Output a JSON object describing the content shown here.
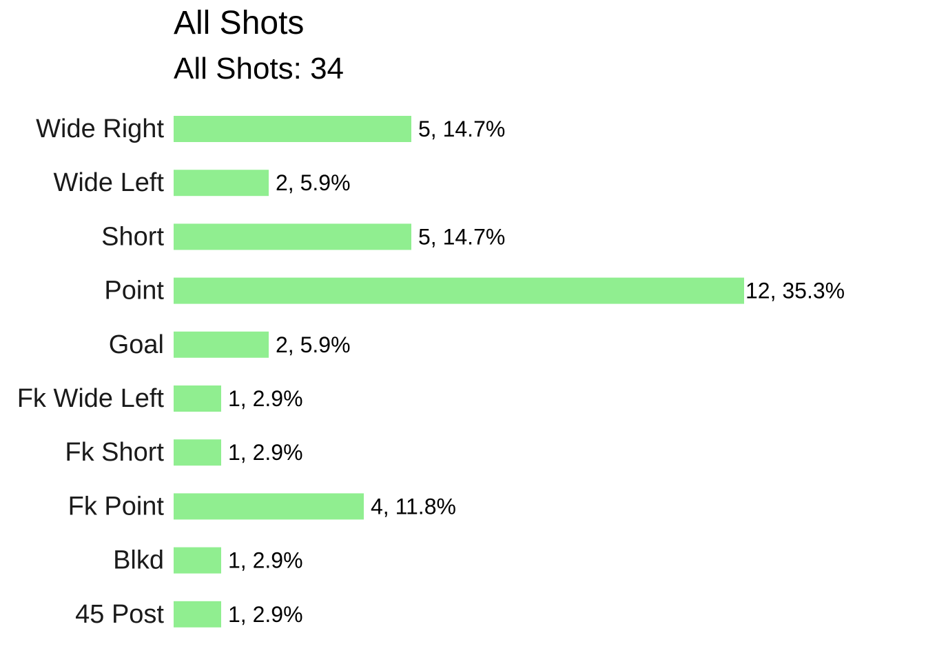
{
  "chart_data": {
    "type": "bar",
    "orientation": "horizontal",
    "title": "All Shots",
    "subtitle": "All Shots: 34",
    "categories": [
      "Wide Right",
      "Wide Left",
      "Short",
      "Point",
      "Goal",
      "Fk Wide Left",
      "Fk Short",
      "Fk Point",
      "Blkd",
      "45 Post"
    ],
    "values": [
      5,
      2,
      5,
      12,
      2,
      1,
      1,
      4,
      1,
      1
    ],
    "labels": [
      "5, 14.7%",
      "2, 5.9%",
      "5, 14.7%",
      "12, 35.3%",
      "2, 5.9%",
      "1, 2.9%",
      "1, 2.9%",
      "4, 11.8%",
      "1, 2.9%",
      "1, 2.9%"
    ],
    "bar_color": "#90EE90",
    "xlim": [
      0,
      12
    ],
    "xlabel": "",
    "ylabel": "",
    "grid": false,
    "axes_visible": false
  }
}
